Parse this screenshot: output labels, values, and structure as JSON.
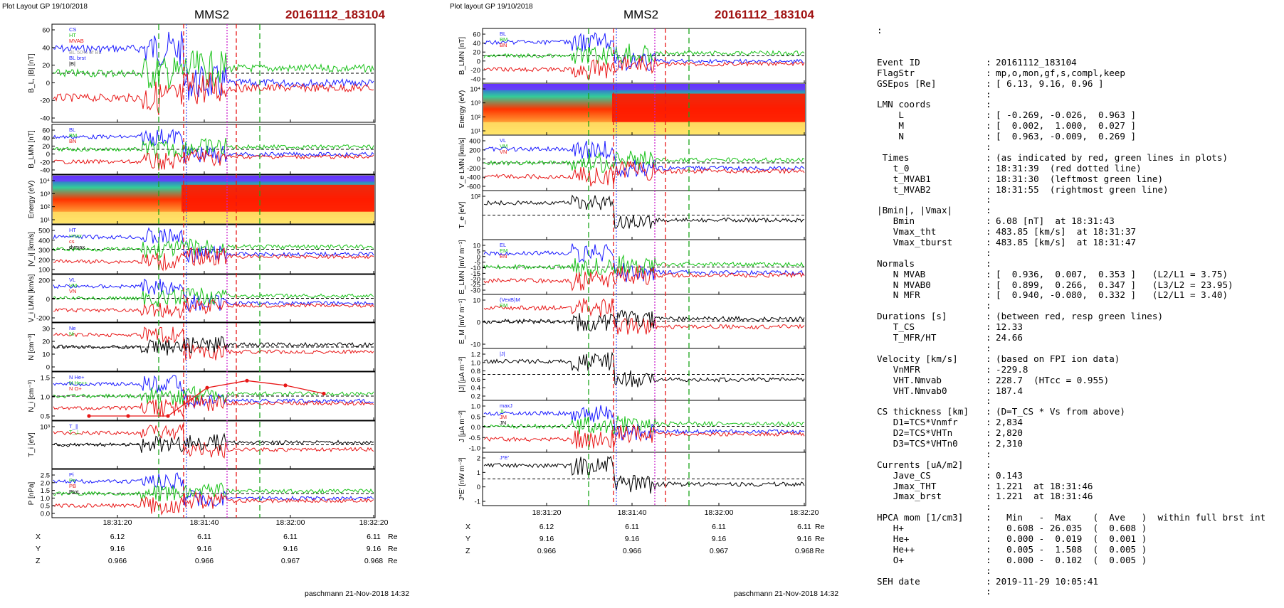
{
  "left_figure": {
    "header": "Plot Layout GP 19/10/2018",
    "spacecraft": "MMS2",
    "event_id": "20161112_183104",
    "footer": "paschmann 21-Nov-2018 14:32",
    "time_ticks": [
      "18:31:20",
      "18:31:40",
      "18:32:00",
      "18:32:20"
    ],
    "ephemeris": {
      "rows": [
        {
          "label": "X",
          "values": [
            "6.12",
            "6.11",
            "6.11",
            "6.11"
          ],
          "unit": "Re"
        },
        {
          "label": "Y",
          "values": [
            "9.16",
            "9.16",
            "9.16",
            "9.16"
          ],
          "unit": "Re"
        },
        {
          "label": "Z",
          "values": [
            "0.966",
            "0.966",
            "0.967",
            "0.968"
          ],
          "unit": "Re"
        }
      ]
    },
    "panels": [
      {
        "id": "b_total",
        "ylabel": "B_L, |B| [nT]",
        "yticks": [
          "60",
          "40",
          "20",
          "0",
          "-20",
          "-40"
        ],
        "legend": [
          "CS",
          "HT",
          "MVAB",
          "",
          "BL 50% of BL",
          "BL brst",
          "|B|"
        ]
      },
      {
        "id": "b_lmn",
        "ylabel": "B_LMN [nT]",
        "yticks": [
          "60",
          "40",
          "20",
          "0",
          "-20",
          "-40"
        ],
        "legend": [
          "BL",
          "BM",
          "BN"
        ]
      },
      {
        "id": "ion_spec",
        "ylabel": "Energy (eV)",
        "yticks": [
          "10⁴",
          "10³",
          "10²",
          "10¹"
        ],
        "legend": []
      },
      {
        "id": "vi_mag",
        "ylabel": "|V_i| [km/s]",
        "yticks": [
          "500",
          "400",
          "300",
          "200",
          "100"
        ],
        "legend": [
          "HT",
          "vmax",
          "cs",
          "dvmax"
        ]
      },
      {
        "id": "vi_lmn",
        "ylabel": "V_i LMN [km/s]",
        "yticks": [
          "200",
          "0",
          "-200"
        ],
        "legend": [
          "VL",
          "VM",
          "VN"
        ]
      },
      {
        "id": "density",
        "ylabel": "N [cm⁻³]",
        "yticks": [
          "30",
          "20",
          "10",
          "0"
        ],
        "legend": [
          "Ne",
          "Ni"
        ]
      },
      {
        "id": "hpca",
        "ylabel": "N_i [cm⁻³]",
        "yticks": [
          "1.5",
          "1.0",
          "0.5"
        ],
        "legend": [
          "N He+",
          "N He++",
          "N O+"
        ]
      },
      {
        "id": "ti",
        "ylabel": "T_i [eV]",
        "yticks": [
          "10³"
        ],
        "legend": [
          "T_∥",
          "T_⊥"
        ]
      },
      {
        "id": "pressure",
        "ylabel": "P [nPa]",
        "yticks": [
          "2.5",
          "2.0",
          "1.5",
          "1.0",
          "0.5",
          "0.0"
        ],
        "legend": [
          "Pi",
          "Pe",
          "PB",
          "Ptot"
        ]
      }
    ]
  },
  "right_figure": {
    "header": "Plot layout GP 19/10/2018",
    "spacecraft": "MMS2",
    "event_id": "20161112_183104",
    "footer": "paschmann 21-Nov-2018 14:32",
    "time_ticks": [
      "18:31:20",
      "18:31:40",
      "18:32:00",
      "18:32:20"
    ],
    "ephemeris": {
      "rows": [
        {
          "label": "X",
          "values": [
            "6.12",
            "6.11",
            "6.11",
            "6.11"
          ],
          "unit": "Re"
        },
        {
          "label": "Y",
          "values": [
            "9.16",
            "9.16",
            "9.16",
            "9.16"
          ],
          "unit": "Re"
        },
        {
          "label": "Z",
          "values": [
            "0.966",
            "0.966",
            "0.967",
            "0.968"
          ],
          "unit": "Re"
        }
      ]
    },
    "panels": [
      {
        "id": "b_lmn",
        "ylabel": "B_LMN [nT]",
        "yticks": [
          "60",
          "40",
          "20",
          "0",
          "-20",
          "-40"
        ],
        "legend": [
          "BL",
          "BM",
          "BN"
        ]
      },
      {
        "id": "ele_spec",
        "ylabel": "Energy (eV)",
        "yticks": [
          "10⁴",
          "10³",
          "10²",
          "10¹"
        ],
        "legend": []
      },
      {
        "id": "ve_lmn",
        "ylabel": "V_e LMN [km/s]",
        "yticks": [
          "400",
          "200",
          "0",
          "-200",
          "-400",
          "-600"
        ],
        "legend": [
          "VL",
          "VM",
          "VN"
        ]
      },
      {
        "id": "te",
        "ylabel": "T_e [eV]",
        "yticks": [
          "10²"
        ],
        "legend": []
      },
      {
        "id": "e_lmn",
        "ylabel": "E_LMN [mV m⁻¹]",
        "yticks": [
          "10",
          "5",
          "0",
          "-5",
          "-10",
          "-15",
          "-20",
          "-25",
          "-30"
        ],
        "legend": [
          "EL",
          "EM",
          "EN"
        ]
      },
      {
        "id": "em",
        "ylabel": "E_M [mV m⁻¹]",
        "yticks": [
          "10",
          "0",
          "-10"
        ],
        "legend": [
          "(VexB)M",
          "EM"
        ]
      },
      {
        "id": "jmag",
        "ylabel": "|J| [μA m⁻²]",
        "yticks": [
          "1.2",
          "1.0",
          "0.8",
          "0.6",
          "0.4",
          "0.2"
        ],
        "legend": [
          "|J|"
        ]
      },
      {
        "id": "jlmn",
        "ylabel": "J [μA m⁻²]",
        "yticks": [
          "1.0",
          "0.5",
          "0.0",
          "-0.5",
          "-1.0"
        ],
        "legend": [
          "maxJ",
          "JL",
          "JM",
          "JN"
        ]
      },
      {
        "id": "jdote",
        "ylabel": "J*E' [nW m⁻³]",
        "yticks": [
          "2",
          "1",
          "0",
          "-1"
        ],
        "legend": [
          "J*E'"
        ]
      }
    ]
  },
  "summary": {
    "top_mark": ":",
    "rows": [
      {
        "k": "Event ID",
        "v": "20161112_183104"
      },
      {
        "k": "FlagStr",
        "v": "mp,o,mon,gf,s,compl,keep"
      },
      {
        "k": "GSEpos [Re]",
        "v": "[ 6.13, 9.16, 0.96 ]"
      },
      {
        "k": "",
        "v": ""
      },
      {
        "k": "LMN coords",
        "v": ""
      },
      {
        "k": "    L",
        "v": "[ -0.269, -0.026,  0.963 ]"
      },
      {
        "k": "    M",
        "v": "[  0.002,  1.000,  0.027 ]"
      },
      {
        "k": "    N",
        "v": "[  0.963, -0.009,  0.269 ]"
      },
      {
        "k": "",
        "v": ""
      },
      {
        "k": " Times",
        "v": "(as indicated by red, green lines in plots)"
      },
      {
        "k": "   t_0",
        "v": "18:31:39  (red dotted line)"
      },
      {
        "k": "   t_MVAB1",
        "v": "18:31:30  (leftmost green line)"
      },
      {
        "k": "   t_MVAB2",
        "v": "18:31:55  (rightmost green line)"
      },
      {
        "k": "",
        "v": ""
      },
      {
        "k": "|Bmin|, |Vmax|",
        "v": ""
      },
      {
        "k": "   Bmin",
        "v": "6.08 [nT]  at 18:31:43"
      },
      {
        "k": "   Vmax_tht",
        "v": "483.85 [km/s]  at 18:31:37"
      },
      {
        "k": "   Vmax_tburst",
        "v": "483.85 [km/s]  at 18:31:47"
      },
      {
        "k": "",
        "v": ""
      },
      {
        "k": "Normals",
        "v": ""
      },
      {
        "k": "   N MVAB",
        "v": "[  0.936,  0.007,  0.353 ]   (L2/L1 = 3.75)"
      },
      {
        "k": "   N MVAB0",
        "v": "[  0.899,  0.266,  0.347 ]   (L3/L2 = 23.95)"
      },
      {
        "k": "   N MFR",
        "v": "[  0.940, -0.080,  0.332 ]   (L2/L1 = 3.40)"
      },
      {
        "k": "",
        "v": ""
      },
      {
        "k": "Durations [s]",
        "v": "(between red, resp green lines)"
      },
      {
        "k": "   T_CS",
        "v": "12.33"
      },
      {
        "k": "   T_MFR/HT",
        "v": "24.66"
      },
      {
        "k": "",
        "v": ""
      },
      {
        "k": "Velocity [km/s]",
        "v": "(based on FPI ion data)"
      },
      {
        "k": "   VnMFR",
        "v": "-229.8"
      },
      {
        "k": "   VHT.Nmvab",
        "v": "228.7  (HTcc = 0.955)"
      },
      {
        "k": "   VHT.Nmvab0",
        "v": "187.4"
      },
      {
        "k": "",
        "v": ""
      },
      {
        "k": "CS thickness [km]",
        "v": "(D=T_CS * Vs from above)"
      },
      {
        "k": "   D1=TCS*Vnmfr",
        "v": "2,834"
      },
      {
        "k": "   D2=TCS*VHTn",
        "v": "2,820"
      },
      {
        "k": "   D3=TCS*VHTn0",
        "v": "2,310"
      },
      {
        "k": "",
        "v": ""
      },
      {
        "k": "Currents [uA/m2]",
        "v": ""
      },
      {
        "k": "   Jave_CS",
        "v": "0.143"
      },
      {
        "k": "   Jmax_THT",
        "v": "1.221  at 18:31:46"
      },
      {
        "k": "   Jmax_brst",
        "v": "1.221  at 18:31:46"
      },
      {
        "k": "",
        "v": ""
      },
      {
        "k": "HPCA mom [1/cm3]",
        "v": "  Min   -  Max    (  Ave   )  within full brst int"
      },
      {
        "k": "   H+",
        "v": "  0.608 - 26.035  (  0.608 )"
      },
      {
        "k": "   He+",
        "v": "  0.000 -  0.019  (  0.001 )"
      },
      {
        "k": "   He++",
        "v": "  0.005 -  1.508  (  0.005 )"
      },
      {
        "k": "   O+",
        "v": "  0.000 -  0.102  (  0.005 )"
      },
      {
        "k": "",
        "v": ""
      },
      {
        "k": "SEH date",
        "v": "2019-11-29 10:05:41"
      },
      {
        "k": "",
        "v": ""
      }
    ]
  },
  "chart_data": [
    {
      "type": "line",
      "title": "MMS2 20161112_183104",
      "x_ticks": [
        "18:31:20",
        "18:31:40",
        "18:32:00",
        "18:32:20"
      ],
      "markers": {
        "t_0": "18:31:39",
        "t_MVAB1": "18:31:30",
        "t_MVAB2": "18:31:55"
      },
      "panels": [
        "B_L, |B| [nT]",
        "B_LMN [nT]",
        "Energy (eV)",
        "|V_i| [km/s]",
        "V_i LMN [km/s]",
        "N [cm⁻³]",
        "N_i [cm⁻³]",
        "T_i [eV]",
        "P [nPa]"
      ],
      "hpca_minor_ion_density": {
        "series": "N He++",
        "x": [
          "18:31:06",
          "18:31:16",
          "18:31:26",
          "18:31:36",
          "18:31:46",
          "18:31:56",
          "18:32:06"
        ],
        "values": [
          0.0,
          0.0,
          0.0,
          1.2,
          1.5,
          1.3,
          0.95
        ]
      }
    },
    {
      "type": "line",
      "title": "MMS2 20161112_183104",
      "x_ticks": [
        "18:31:20",
        "18:31:40",
        "18:32:00",
        "18:32:20"
      ],
      "panels": [
        "B_LMN [nT]",
        "Energy (eV)",
        "V_e LMN [km/s]",
        "T_e [eV]",
        "E_LMN [mV m⁻¹]",
        "E_M [mV m⁻¹]",
        "|J| [μA m⁻²]",
        "J [μA m⁻²]",
        "J*E' [nW m⁻³]"
      ]
    }
  ]
}
